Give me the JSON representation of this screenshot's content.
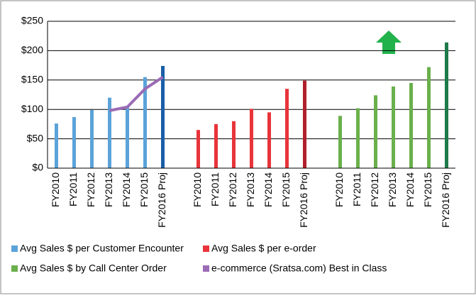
{
  "chart_data": {
    "type": "bar",
    "categories": [
      "FY2010",
      "FY2011",
      "FY2012",
      "FY2013",
      "FY2014",
      "FY2015",
      "FY2016 Proj",
      null,
      "FY2010",
      "FY2011",
      "FY2012",
      "FY2013",
      "FY2014",
      "FY2015",
      "FY2016 Proj",
      null,
      "FY2010",
      "FY2011",
      "FY2012",
      "FY2013",
      "FY2014",
      "FY2015",
      "FY2016 Proj"
    ],
    "series": [
      {
        "name": "Avg Sales $ per Customer Encounter",
        "color": "#5ba3d9",
        "colors": [
          "#5ba3d9",
          "#5ba3d9",
          "#5ba3d9",
          "#5ba3d9",
          "#5ba3d9",
          "#5ba3d9",
          "#1a5fa8",
          null,
          null,
          null,
          null,
          null,
          null,
          null,
          null,
          null,
          null,
          null,
          null,
          null,
          null,
          null,
          null
        ],
        "values": [
          76,
          87,
          99,
          120,
          104,
          155,
          174,
          null,
          null,
          null,
          null,
          null,
          null,
          null,
          null,
          null,
          null,
          null,
          null,
          null,
          null,
          null,
          null
        ]
      },
      {
        "name": "Avg Sales $ per e-order",
        "color": "#e8343a",
        "colors": [
          null,
          null,
          null,
          null,
          null,
          null,
          null,
          null,
          "#e8343a",
          "#e8343a",
          "#e8343a",
          "#e8343a",
          "#e8343a",
          "#e8343a",
          "#b0202a",
          null,
          null,
          null,
          null,
          null,
          null,
          null,
          null
        ],
        "values": [
          null,
          null,
          null,
          null,
          null,
          null,
          null,
          null,
          65,
          75,
          80,
          101,
          95,
          135,
          149,
          null,
          null,
          null,
          null,
          null,
          null,
          null,
          null
        ]
      },
      {
        "name": "Avg Sales $ by Call Center Order",
        "color": "#6ab04c",
        "colors": [
          null,
          null,
          null,
          null,
          null,
          null,
          null,
          null,
          null,
          null,
          null,
          null,
          null,
          null,
          null,
          null,
          "#6ab04c",
          "#6ab04c",
          "#6ab04c",
          "#6ab04c",
          "#6ab04c",
          "#6ab04c",
          "#1e7a4a"
        ],
        "values": [
          null,
          null,
          null,
          null,
          null,
          null,
          null,
          null,
          null,
          null,
          null,
          null,
          null,
          null,
          null,
          null,
          89,
          102,
          124,
          139,
          145,
          172,
          214
        ]
      },
      {
        "name": "e-commerce (Sratsa.com) Best in Class",
        "color": "#9b6bb5",
        "kind": "line",
        "values": [
          null,
          null,
          null,
          98,
          104,
          135,
          155,
          null,
          null,
          null,
          null,
          null,
          null,
          null,
          null,
          null,
          null,
          null,
          null,
          null,
          null,
          null,
          null
        ]
      }
    ],
    "ylim": [
      0,
      250
    ],
    "yticks": [
      {
        "value": 0,
        "label": "$0"
      },
      {
        "value": 50,
        "label": "$50"
      },
      {
        "value": 100,
        "label": "$100"
      },
      {
        "value": 150,
        "label": "$150"
      },
      {
        "value": 200,
        "label": "$200"
      },
      {
        "value": 250,
        "label": "$250"
      }
    ],
    "grid": true
  }
}
